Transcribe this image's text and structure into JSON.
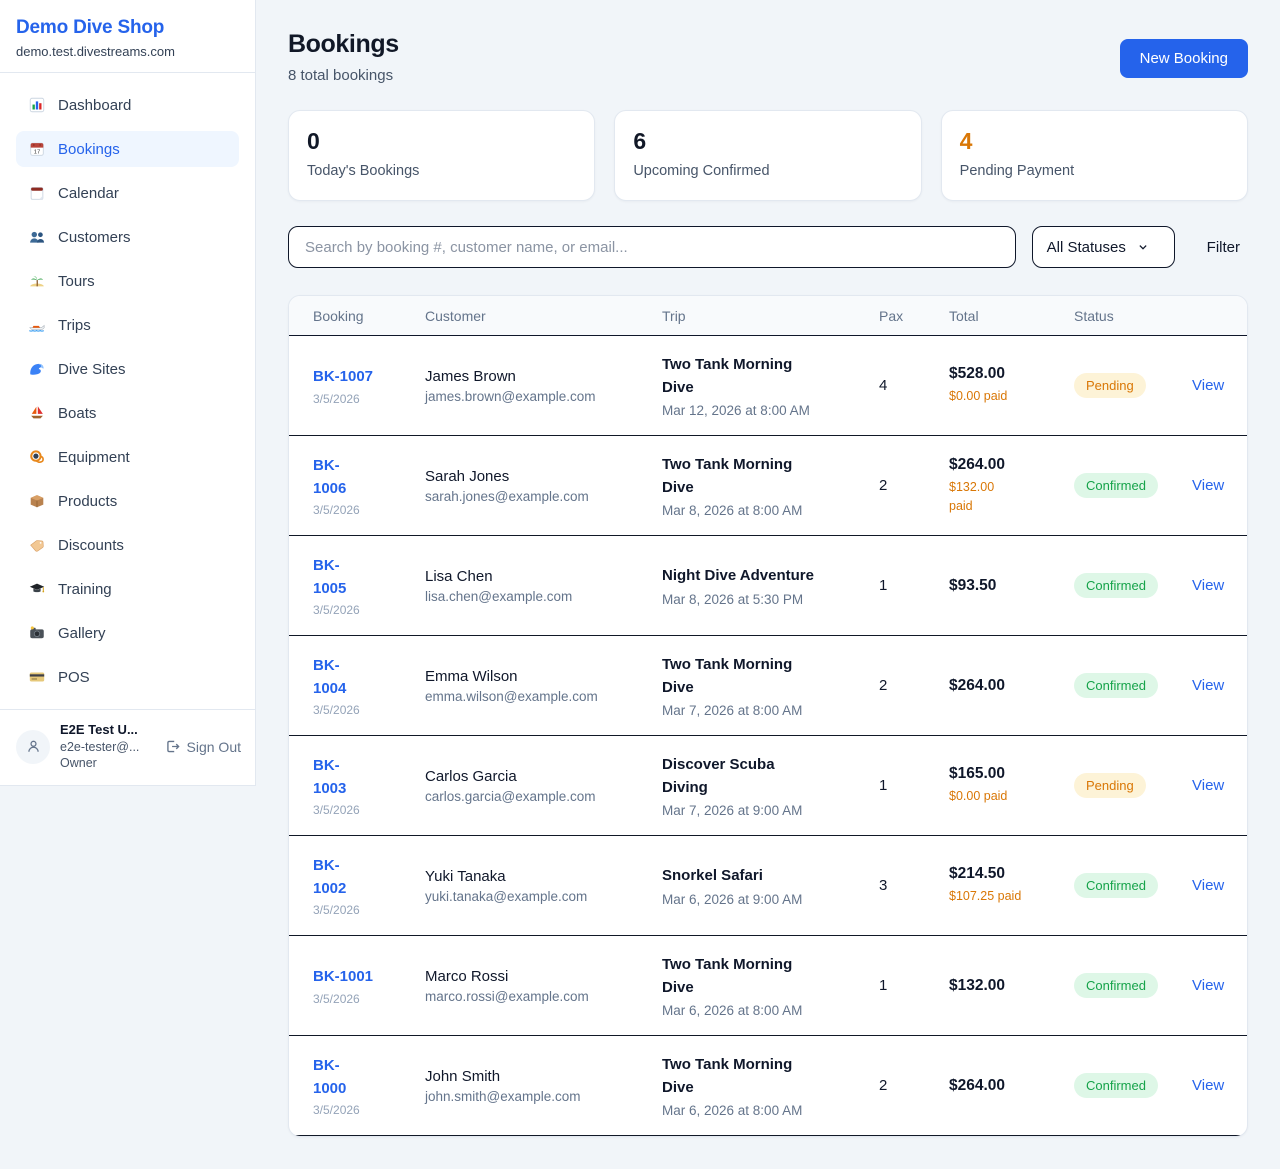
{
  "brand": {
    "name": "Demo Dive Shop",
    "domain": "demo.test.divestreams.com"
  },
  "sidebar": {
    "items": [
      {
        "key": "dashboard",
        "icon": "bar-chart",
        "label": "Dashboard",
        "active": false
      },
      {
        "key": "bookings",
        "icon": "calendar-17",
        "label": "Bookings",
        "active": true
      },
      {
        "key": "calendar",
        "icon": "calendar-pad",
        "label": "Calendar",
        "active": false
      },
      {
        "key": "customers",
        "icon": "people",
        "label": "Customers",
        "active": false
      },
      {
        "key": "tours",
        "icon": "island",
        "label": "Tours",
        "active": false
      },
      {
        "key": "trips",
        "icon": "speedboat",
        "label": "Trips",
        "active": false
      },
      {
        "key": "dive-sites",
        "icon": "wave",
        "label": "Dive Sites",
        "active": false
      },
      {
        "key": "boats",
        "icon": "sailboat",
        "label": "Boats",
        "active": false
      },
      {
        "key": "equipment",
        "icon": "dive-mask",
        "label": "Equipment",
        "active": false
      },
      {
        "key": "products",
        "icon": "package",
        "label": "Products",
        "active": false
      },
      {
        "key": "discounts",
        "icon": "tag",
        "label": "Discounts",
        "active": false
      },
      {
        "key": "training",
        "icon": "grad-cap",
        "label": "Training",
        "active": false
      },
      {
        "key": "gallery",
        "icon": "camera",
        "label": "Gallery",
        "active": false
      },
      {
        "key": "pos",
        "icon": "credit-card",
        "label": "POS",
        "active": false
      }
    ],
    "user": {
      "name": "E2E Test U...",
      "email": "e2e-tester@...",
      "role": "Owner",
      "sign_out_label": "Sign Out"
    }
  },
  "header": {
    "title": "Bookings",
    "subtitle": "8 total bookings",
    "new_booking_label": "New Booking"
  },
  "stats": [
    {
      "value": "0",
      "label": "Today's Bookings",
      "color": "#111827"
    },
    {
      "value": "6",
      "label": "Upcoming Confirmed",
      "color": "#111827"
    },
    {
      "value": "4",
      "label": "Pending Payment",
      "color": "#d97706"
    }
  ],
  "filters": {
    "search_placeholder": "Search by booking #, customer name, or email...",
    "status_selected": "All Statuses",
    "filter_label": "Filter"
  },
  "table": {
    "columns": [
      "Booking",
      "Customer",
      "Trip",
      "Pax",
      "Total",
      "Status"
    ],
    "rows": [
      {
        "id": "BK-1007",
        "date": "3/5/2026",
        "customer": "James Brown",
        "email": "james.brown@example.com",
        "trip": "Two Tank Morning\nDive",
        "trip_datetime": "Mar 12, 2026 at 8:00 AM",
        "pax": "4",
        "total": "$528.00",
        "paid": "$0.00 paid",
        "status": "Pending",
        "action": "View"
      },
      {
        "id": "BK-\n1006",
        "date": "3/5/2026",
        "customer": "Sarah Jones",
        "email": "sarah.jones@example.com",
        "trip": "Two Tank Morning\nDive",
        "trip_datetime": "Mar 8, 2026 at 8:00 AM",
        "pax": "2",
        "total": "$264.00",
        "paid": "$132.00\npaid",
        "status": "Confirmed",
        "action": "View"
      },
      {
        "id": "BK-\n1005",
        "date": "3/5/2026",
        "customer": "Lisa Chen",
        "email": "lisa.chen@example.com",
        "trip": "Night Dive Adventure",
        "trip_datetime": "Mar 8, 2026 at 5:30 PM",
        "pax": "1",
        "total": "$93.50",
        "paid": "",
        "status": "Confirmed",
        "action": "View"
      },
      {
        "id": "BK-\n1004",
        "date": "3/5/2026",
        "customer": "Emma Wilson",
        "email": "emma.wilson@example.com",
        "trip": "Two Tank Morning\nDive",
        "trip_datetime": "Mar 7, 2026 at 8:00 AM",
        "pax": "2",
        "total": "$264.00",
        "paid": "",
        "status": "Confirmed",
        "action": "View"
      },
      {
        "id": "BK-\n1003",
        "date": "3/5/2026",
        "customer": "Carlos Garcia",
        "email": "carlos.garcia@example.com",
        "trip": "Discover Scuba\nDiving",
        "trip_datetime": "Mar 7, 2026 at 9:00 AM",
        "pax": "1",
        "total": "$165.00",
        "paid": "$0.00 paid",
        "status": "Pending",
        "action": "View"
      },
      {
        "id": "BK-\n1002",
        "date": "3/5/2026",
        "customer": "Yuki Tanaka",
        "email": "yuki.tanaka@example.com",
        "trip": "Snorkel Safari",
        "trip_datetime": "Mar 6, 2026 at 9:00 AM",
        "pax": "3",
        "total": "$214.50",
        "paid": "$107.25 paid",
        "status": "Confirmed",
        "action": "View"
      },
      {
        "id": "BK-1001",
        "date": "3/5/2026",
        "customer": "Marco Rossi",
        "email": "marco.rossi@example.com",
        "trip": "Two Tank Morning\nDive",
        "trip_datetime": "Mar 6, 2026 at 8:00 AM",
        "pax": "1",
        "total": "$132.00",
        "paid": "",
        "status": "Confirmed",
        "action": "View"
      },
      {
        "id": "BK-\n1000",
        "date": "3/5/2026",
        "customer": "John Smith",
        "email": "john.smith@example.com",
        "trip": "Two Tank Morning\nDive",
        "trip_datetime": "Mar 6, 2026 at 8:00 AM",
        "pax": "2",
        "total": "$264.00",
        "paid": "",
        "status": "Confirmed",
        "action": "View"
      }
    ]
  },
  "colors": {
    "accent": "#2563eb",
    "pending_text": "#d97706",
    "pending_bg": "#fdf3d7",
    "confirmed_text": "#16a34a",
    "confirmed_bg": "#def7e7"
  }
}
